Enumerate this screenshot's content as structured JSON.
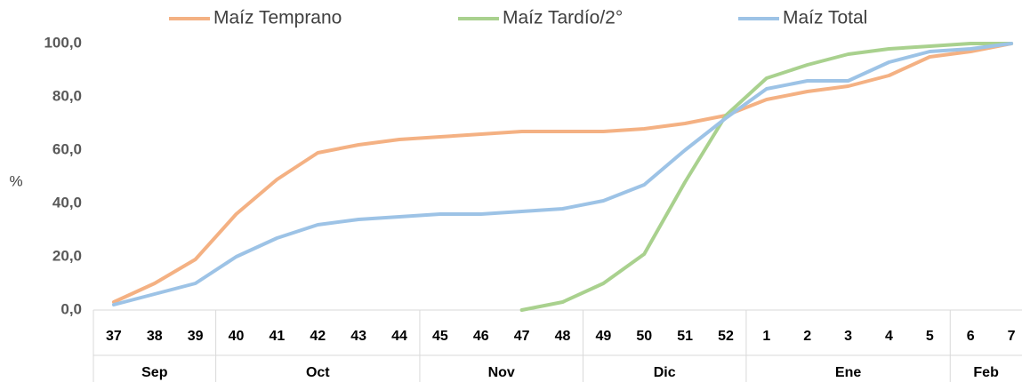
{
  "chart_data": {
    "type": "line",
    "ylabel": "%",
    "categories": [
      "37",
      "38",
      "39",
      "40",
      "41",
      "42",
      "43",
      "44",
      "45",
      "46",
      "47",
      "48",
      "49",
      "50",
      "51",
      "52",
      "1",
      "2",
      "3",
      "4",
      "5",
      "6",
      "7"
    ],
    "groups": [
      {
        "label": "Sep",
        "size": 3
      },
      {
        "label": "Oct",
        "size": 5
      },
      {
        "label": "Nov",
        "size": 4
      },
      {
        "label": "Dic",
        "size": 4
      },
      {
        "label": "Ene",
        "size": 5
      },
      {
        "label": "Feb",
        "size": 2
      }
    ],
    "series": [
      {
        "name": "Maíz Temprano",
        "color": "#f4b183",
        "values": [
          3,
          10,
          19,
          36,
          49,
          59,
          62,
          64,
          65,
          66,
          67,
          67,
          67,
          68,
          70,
          73,
          79,
          82,
          84,
          88,
          95,
          97,
          100
        ]
      },
      {
        "name": "Maíz Tardío/2°",
        "color": "#a9d18e",
        "values": [
          null,
          null,
          null,
          null,
          null,
          null,
          null,
          null,
          null,
          null,
          0,
          3,
          10,
          21,
          48,
          73,
          87,
          92,
          96,
          98,
          99,
          100,
          100
        ]
      },
      {
        "name": "Maíz Total",
        "color": "#9dc3e6",
        "values": [
          2,
          6,
          10,
          20,
          27,
          32,
          34,
          35,
          36,
          36,
          37,
          38,
          41,
          47,
          60,
          72,
          83,
          86,
          86,
          93,
          97,
          98,
          100
        ]
      }
    ],
    "ylim": [
      0,
      100
    ],
    "yticks": [
      {
        "value": 0,
        "label": "0,0"
      },
      {
        "value": 20,
        "label": "20,0"
      },
      {
        "value": 40,
        "label": "40,0"
      },
      {
        "value": 60,
        "label": "60,0"
      },
      {
        "value": 80,
        "label": "80,0"
      },
      {
        "value": 100,
        "label": "100,0"
      }
    ],
    "grid": false,
    "legend": "top"
  }
}
